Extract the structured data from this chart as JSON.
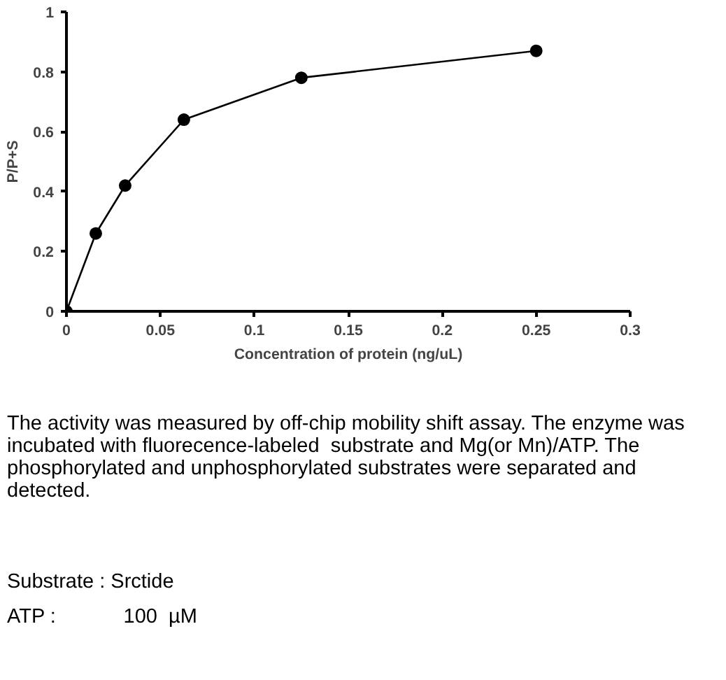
{
  "chart_data": {
    "type": "line",
    "xlabel": "Concentration of protein (ng/uL)",
    "ylabel": "P/P+S",
    "x": [
      0,
      0.015625,
      0.03125,
      0.0625,
      0.125,
      0.25
    ],
    "series": [
      {
        "color": "#000000",
        "values": [
          0,
          0.26,
          0.42,
          0.64,
          0.78,
          0.87
        ]
      }
    ],
    "xlim": [
      0,
      0.3
    ],
    "xticks": [
      0,
      0.05,
      0.1,
      0.15,
      0.2,
      0.25,
      0.3
    ],
    "ylim": [
      0,
      1
    ],
    "yticks": [
      0,
      0.2,
      0.4,
      0.6,
      0.8,
      1
    ],
    "marker": "circle",
    "line_style": "solid",
    "grid": false,
    "annotations": [
      "The activity was measured by off-chip mobility shift assay. The enzyme was incubated with fluorecence-labeled  substrate and Mg(or Mn)/ATP. The phosphorylated and unphosphorylated substrates were separated and detected.",
      "Substrate : Srctide",
      "ATP :            100  µM"
    ]
  }
}
